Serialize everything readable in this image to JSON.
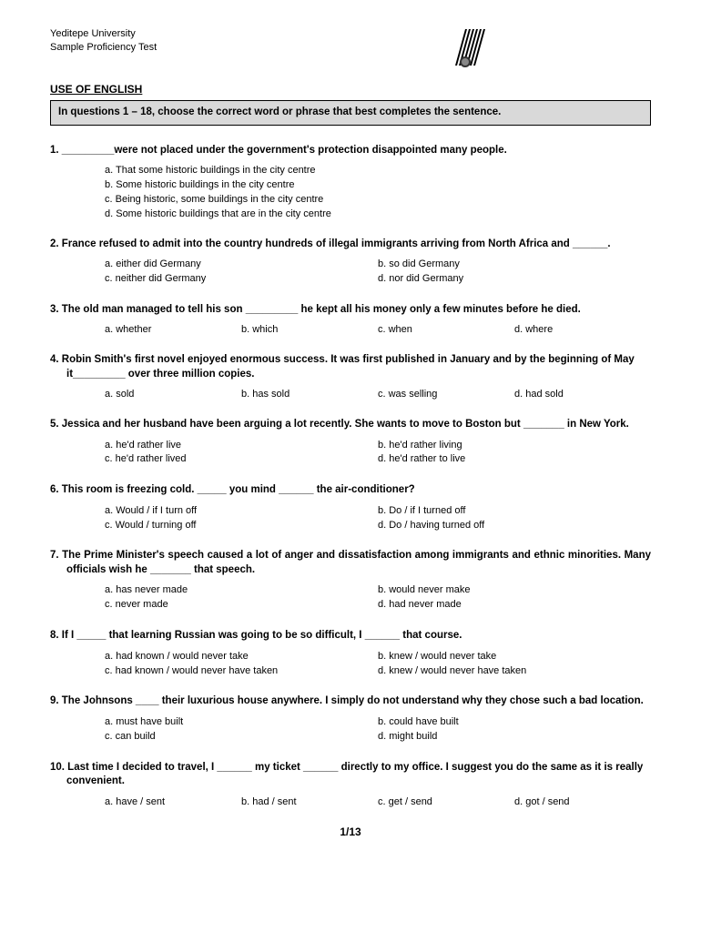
{
  "header": {
    "line1": "Yeditepe University",
    "line2": "Sample Proficiency Test"
  },
  "section_title": "USE OF ENGLISH",
  "instruction": "In questions 1 – 18, choose the correct word or phrase that best completes the sentence.",
  "questions": [
    {
      "num": "1.",
      "text": "_________were not placed under the government's protection disappointed many people.",
      "layout": "single",
      "opts": [
        "a. That some historic buildings in the city centre",
        "b. Some historic buildings in the city centre",
        "c. Being historic, some buildings in the city centre",
        "d. Some historic buildings that are in the city centre"
      ]
    },
    {
      "num": "2.",
      "text": "France refused to admit into the country hundreds of illegal immigrants arriving from North Africa and ______.",
      "layout": "2col",
      "opts": [
        "a. either did Germany",
        "b. so did Germany",
        "c. neither did Germany",
        "d. nor did Germany"
      ]
    },
    {
      "num": "3.",
      "text": "The old man managed to tell his son _________ he kept all his money only a few minutes before he died.",
      "layout": "4col",
      "opts": [
        "a. whether",
        "b. which",
        "c. when",
        "d. where"
      ]
    },
    {
      "num": "4.",
      "text": "Robin Smith's first novel enjoyed enormous success. It was first published in January and by the beginning of May it_________ over three million copies.",
      "layout": "4col",
      "opts": [
        "a. sold",
        "b. has sold",
        "c. was selling",
        "d. had sold"
      ]
    },
    {
      "num": "5.",
      "text": "Jessica and her husband have been arguing a lot recently. She wants to move to Boston but _______ in New York.",
      "layout": "2col",
      "opts": [
        "a. he'd rather live",
        "b. he'd rather living",
        "c. he'd rather lived",
        "d. he'd rather to live"
      ]
    },
    {
      "num": "6.",
      "text": "This room is freezing cold. _____ you mind ______ the air-conditioner?",
      "layout": "2col",
      "opts": [
        "a. Would / if I turn off",
        "b. Do / if I turned off",
        "c. Would / turning off",
        "d. Do / having turned off"
      ]
    },
    {
      "num": "7.",
      "text": "The Prime Minister's speech caused a lot of anger and dissatisfaction among immigrants and ethnic minorities. Many officials wish he _______ that speech.",
      "layout": "2col",
      "justify": true,
      "opts": [
        "a. has never made",
        "b. would never make",
        "c. never made",
        "d. had never made"
      ]
    },
    {
      "num": "8.",
      "text": "If I _____ that learning Russian was going to be so difficult, I ______ that course.",
      "layout": "2col",
      "opts": [
        "a. had known / would never take",
        "b. knew / would never take",
        "c. had known / would never have taken",
        "d. knew / would never have taken"
      ]
    },
    {
      "num": "9.",
      "text": "The Johnsons ____ their luxurious house anywhere. I simply do not understand why they chose such a bad location.",
      "layout": "2col",
      "opts": [
        "a. must have built",
        "b. could have built",
        "c. can build",
        "d. might build"
      ]
    },
    {
      "num": "10.",
      "text": "Last time I decided to travel, I ______ my ticket ______ directly to my office. I suggest you do the same as it is really convenient.",
      "layout": "4col",
      "opts": [
        "a. have / sent",
        "b. had / sent",
        "c. get / send",
        "d. got / send"
      ]
    }
  ],
  "page_num": "1/13"
}
